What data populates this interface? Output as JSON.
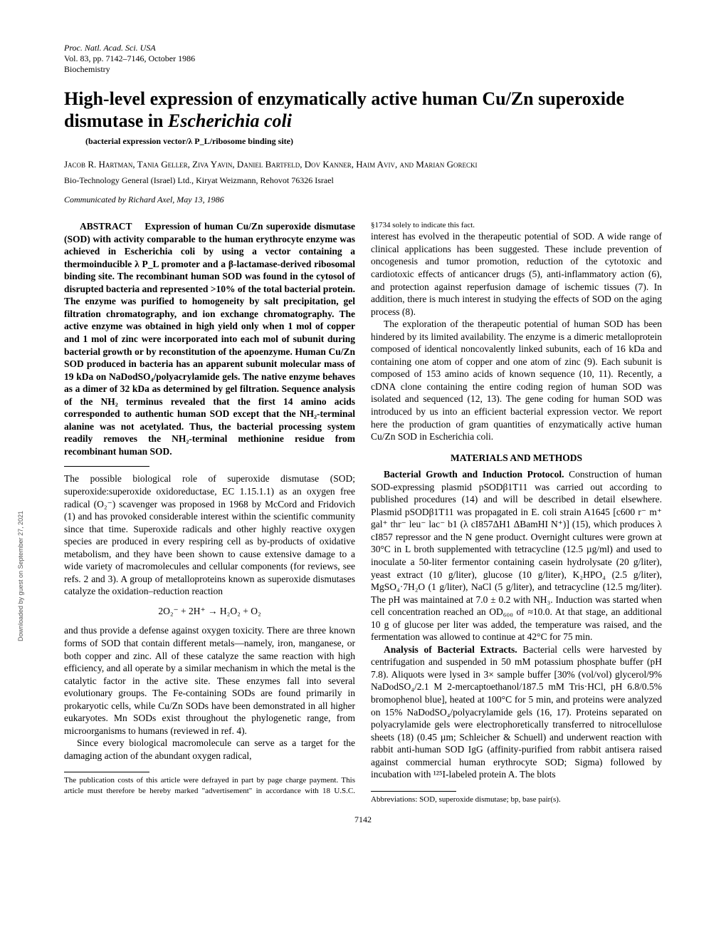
{
  "meta": {
    "line1": "Proc. Natl. Acad. Sci. USA",
    "line2": "Vol. 83, pp. 7142–7146, October 1986",
    "line3": "Biochemistry"
  },
  "title": "High-level expression of enzymatically active human Cu/Zn superoxide dismutase in Escherichia coli",
  "subtitle": "(bacterial expression vector/λ P_L/ribosome binding site)",
  "authors": "Jacob R. Hartman, Tania Geller, Ziva Yavin, Daniel Bartfeld, Dov Kanner, Haim Aviv, and Marian Gorecki",
  "affiliation": "Bio-Technology General (Israel) Ltd., Kiryat Weizmann, Rehovot 76326 Israel",
  "communicated": "Communicated by Richard Axel, May 13, 1986",
  "abstract": {
    "label": "ABSTRACT",
    "body": "Expression of human Cu/Zn superoxide dismutase (SOD) with activity comparable to the human erythrocyte enzyme was achieved in Escherichia coli by using a vector containing a thermoinducible λ P_L promoter and a β-lactamase-derived ribosomal binding site. The recombinant human SOD was found in the cytosol of disrupted bacteria and represented >10% of the total bacterial protein. The enzyme was purified to homogeneity by salt precipitation, gel filtration chromatography, and ion exchange chromatography. The active enzyme was obtained in high yield only when 1 mol of copper and 1 mol of zinc were incorporated into each mol of subunit during bacterial growth or by reconstitution of the apoenzyme. Human Cu/Zn SOD produced in bacteria has an apparent subunit molecular mass of 19 kDa on NaDodSO₄/polyacrylamide gels. The native enzyme behaves as a dimer of 32 kDa as determined by gel filtration. Sequence analysis of the NH₂ terminus revealed that the first 14 amino acids corresponded to authentic human SOD except that the NH₂-terminal alanine was not acetylated. Thus, the bacterial processing system readily removes the NH₂-terminal methionine residue from recombinant human SOD."
  },
  "intro": {
    "p1": "The possible biological role of superoxide dismutase (SOD; superoxide:superoxide oxidoreductase, EC 1.15.1.1) as an oxygen free radical (O₂⁻) scavenger was proposed in 1968 by McCord and Fridovich (1) and has provoked considerable interest within the scientific community since that time. Superoxide radicals and other highly reactive oxygen species are produced in every respiring cell as by-products of oxidative metabolism, and they have been shown to cause extensive damage to a wide variety of macromolecules and cellular components (for reviews, see refs. 2 and 3). A group of metalloproteins known as superoxide dismutases catalyze the oxidation–reduction reaction",
    "eqn": "2O₂⁻ + 2H⁺ → H₂O₂ + O₂",
    "p2": "and thus provide a defense against oxygen toxicity. There are three known forms of SOD that contain different metals—namely, iron, manganese, or both copper and zinc. All of these catalyze the same reaction with high efficiency, and all operate by a similar mechanism in which the metal is the catalytic factor in the active site. These enzymes fall into several evolutionary groups. The Fe-containing SODs are found primarily in prokaryotic cells, while Cu/Zn SODs have been demonstrated in all higher eukaryotes. Mn SODs exist throughout the phylogenetic range, from microorganisms to humans (reviewed in ref. 4).",
    "p3": "Since every biological macromolecule can serve as a target for the damaging action of the abundant oxygen radical,",
    "p4": "interest has evolved in the therapeutic potential of SOD. A wide range of clinical applications has been suggested. These include prevention of oncogenesis and tumor promotion, reduction of the cytotoxic and cardiotoxic effects of anticancer drugs (5), anti-inflammatory action (6), and protection against reperfusion damage of ischemic tissues (7). In addition, there is much interest in studying the effects of SOD on the aging process (8).",
    "p5": "The exploration of the therapeutic potential of human SOD has been hindered by its limited availability. The enzyme is a dimeric metalloprotein composed of identical noncovalently linked subunits, each of 16 kDa and containing one atom of copper and one atom of zinc (9). Each subunit is composed of 153 amino acids of known sequence (10, 11). Recently, a cDNA clone containing the entire coding region of human SOD was isolated and sequenced (12, 13). The gene coding for human SOD was introduced by us into an efficient bacterial expression vector. We report here the production of gram quantities of enzymatically active human Cu/Zn SOD in Escherichia coli."
  },
  "methods": {
    "heading": "MATERIALS AND METHODS",
    "sub1_label": "Bacterial Growth and Induction Protocol.",
    "sub1_body": " Construction of human SOD-expressing plasmid pSODβ1T11 was carried out according to published procedures (14) and will be described in detail elsewhere. Plasmid pSODβ1T11 was propagated in E. coli strain A1645 [c600 r⁻ m⁺ gal⁺ thr⁻ leu⁻ lac⁻ b1 (λ cI857ΔH1 ΔBamHI N⁺)] (15), which produces λ cI857 repressor and the N gene product. Overnight cultures were grown at 30°C in L broth supplemented with tetracycline (12.5 µg/ml) and used to inoculate a 50-liter fermentor containing casein hydrolysate (20 g/liter), yeast extract (10 g/liter), glucose (10 g/liter), K₂HPO₄ (2.5 g/liter), MgSO₄·7H₂O (1 g/liter), NaCl (5 g/liter), and tetracycline (12.5 mg/liter). The pH was maintained at 7.0 ± 0.2 with NH₃. Induction was started when cell concentration reached an OD₆₀₀ of ≈10.0. At that stage, an additional 10 g of glucose per liter was added, the temperature was raised, and the fermentation was allowed to continue at 42°C for 75 min.",
    "sub2_label": "Analysis of Bacterial Extracts.",
    "sub2_body": " Bacterial cells were harvested by centrifugation and suspended in 50 mM potassium phosphate buffer (pH 7.8). Aliquots were lysed in 3× sample buffer [30% (vol/vol) glycerol/9% NaDodSO₄/2.1 M 2-mercaptoethanol/187.5 mM Tris·HCl, pH 6.8/0.5% bromophenol blue], heated at 100°C for 5 min, and proteins were analyzed on 15% NaDodSO₄/polyacrylamide gels (16, 17). Proteins separated on polyacrylamide gels were electrophoretically transferred to nitrocellulose sheets (18) (0.45 µm; Schleicher & Schuell) and underwent reaction with rabbit anti-human SOD IgG (affinity-purified from rabbit antisera raised against commercial human erythrocyte SOD; Sigma) followed by incubation with ¹²⁵I-labeled protein A. The blots"
  },
  "footnotes": {
    "left": "The publication costs of this article were defrayed in part by page charge payment. This article must therefore be hereby marked \"advertisement\" in accordance with 18 U.S.C. §1734 solely to indicate this fact.",
    "right": "Abbreviations: SOD, superoxide dismutase; bp, base pair(s)."
  },
  "pagenum": "7142",
  "sidetext": "Downloaded by guest on September 27, 2021"
}
